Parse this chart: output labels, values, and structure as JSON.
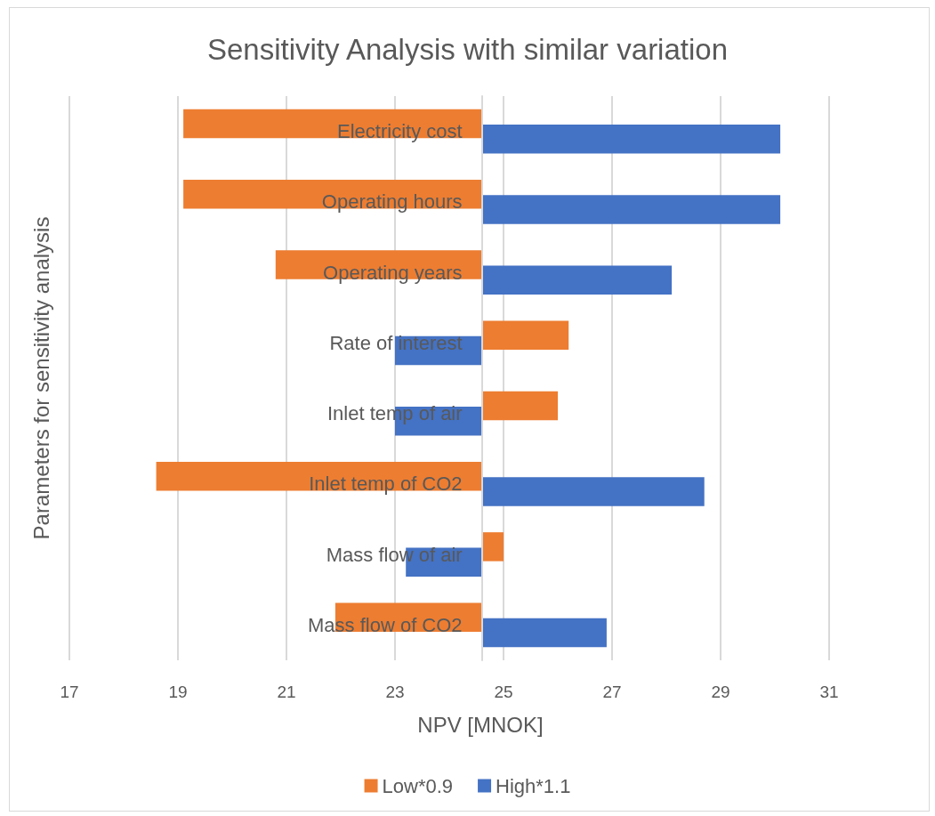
{
  "chart_data": {
    "type": "bar",
    "orientation": "horizontal",
    "title": "Sensitivity Analysis with similar variation",
    "xlabel": "NPV [MNOK]",
    "ylabel": "Parameters for sensitivity analysis",
    "categories": [
      "Electricity cost",
      "Operating hours",
      "Operating years",
      "Rate of interest",
      "Inlet temp of air",
      "Inlet temp of CO2",
      "Mass flow of air",
      "Mass flow of CO2"
    ],
    "series": [
      {
        "name": "Low*0.9",
        "color": "#ed7d31",
        "base": [
          24.6,
          24.6,
          24.6,
          24.6,
          24.6,
          24.6,
          24.6,
          24.6
        ],
        "values": [
          -5.5,
          -5.5,
          -3.8,
          1.6,
          1.4,
          -6.0,
          0.4,
          -2.7
        ]
      },
      {
        "name": "High*1.1",
        "color": "#4472c4",
        "base": [
          24.6,
          24.6,
          24.6,
          24.6,
          24.6,
          24.6,
          24.6,
          24.6
        ],
        "values": [
          5.5,
          5.5,
          3.5,
          -1.6,
          -1.6,
          4.1,
          -1.4,
          2.3
        ]
      }
    ],
    "xlim": [
      17,
      31
    ],
    "xticks": [
      17,
      19,
      21,
      23,
      25,
      27,
      29,
      31
    ],
    "grid": "x",
    "legend": "bottom"
  }
}
